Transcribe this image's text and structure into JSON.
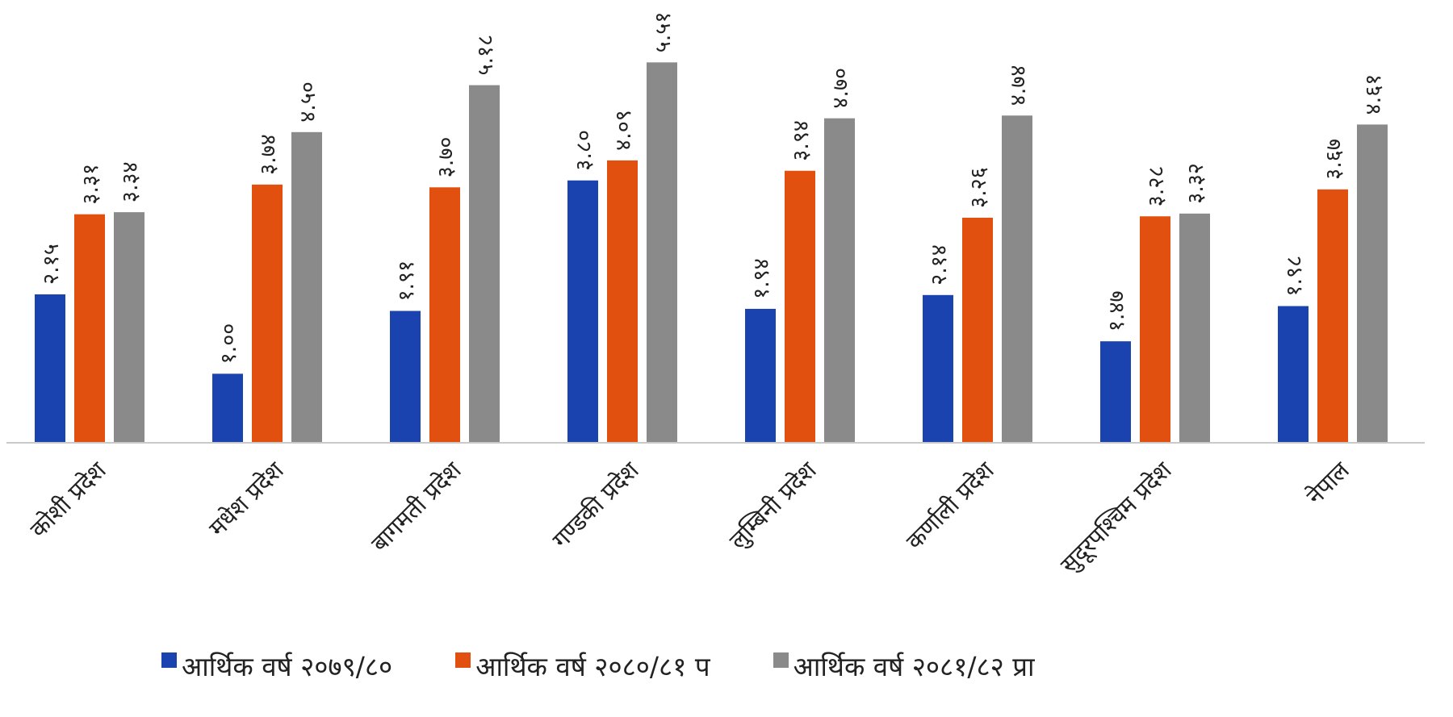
{
  "chart_data": {
    "type": "bar",
    "title": "",
    "xlabel": "",
    "ylabel": "",
    "ylim": [
      0,
      5.5
    ],
    "grid": false,
    "legend_position": "bottom",
    "categories": [
      "कोशी प्रदेश",
      "मधेश प्रदेश",
      "बागमती प्रदेश",
      "गण्डकी प्रदेश",
      "लुम्बिनी प्रदेश",
      "कर्णाली प्रदेश",
      "सुदूरपश्चिम प्रदेश",
      "नेपाल"
    ],
    "series": [
      {
        "name": "आर्थिक वर्ष २०७९/८०",
        "color": "#1a43b0",
        "values": [
          2.15,
          1.0,
          1.91,
          3.8,
          1.94,
          2.14,
          1.47,
          1.98
        ],
        "labels": [
          "२.१५",
          "१.००",
          "१.९१",
          "३.८०",
          "१.९४",
          "२.१४",
          "१.४७",
          "१.९८"
        ]
      },
      {
        "name": "आर्थिक वर्ष २०८०/८१ प",
        "color": "#e2500f",
        "values": [
          3.31,
          3.74,
          3.7,
          4.09,
          3.94,
          3.26,
          3.28,
          3.67
        ],
        "labels": [
          "३.३१",
          "३.७४",
          "३.७०",
          "४.०९",
          "३.९४",
          "३.२६",
          "३.२८",
          "३.६७"
        ]
      },
      {
        "name": "आर्थिक वर्ष २०८१/८२ प्रा",
        "color": "#8a8a8a",
        "values": [
          3.34,
          4.5,
          5.18,
          5.51,
          4.7,
          4.74,
          3.32,
          4.61
        ],
        "labels": [
          "३.३४",
          "४.५०",
          "५.१८",
          "५.५१",
          "४.७०",
          "४.७४",
          "३.३२",
          "४.६१"
        ]
      }
    ]
  }
}
